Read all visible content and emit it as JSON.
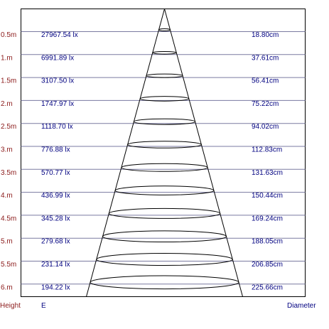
{
  "rows": [
    {
      "height": "0.5m",
      "illuminance": "27967.54 lx",
      "diameter": "18.80cm"
    },
    {
      "height": "1.m",
      "illuminance": "6991.89 lx",
      "diameter": "37.61cm"
    },
    {
      "height": "1.5m",
      "illuminance": "3107.50 lx",
      "diameter": "56.41cm"
    },
    {
      "height": "2.m",
      "illuminance": "1747.97 lx",
      "diameter": "75.22cm"
    },
    {
      "height": "2.5m",
      "illuminance": "1118.70 lx",
      "diameter": "94.02cm"
    },
    {
      "height": "3.m",
      "illuminance": "776.88 lx",
      "diameter": "112.83cm"
    },
    {
      "height": "3.5m",
      "illuminance": "570.77 lx",
      "diameter": "131.63cm"
    },
    {
      "height": "4.m",
      "illuminance": "436.99 lx",
      "diameter": "150.44cm"
    },
    {
      "height": "4.5m",
      "illuminance": "345.28 lx",
      "diameter": "169.24cm"
    },
    {
      "height": "5.m",
      "illuminance": "279.68 lx",
      "diameter": "188.05cm"
    },
    {
      "height": "5.5m",
      "illuminance": "231.14 lx",
      "diameter": "206.85cm"
    },
    {
      "height": "6.m",
      "illuminance": "194.22 lx",
      "diameter": "225.66cm"
    }
  ],
  "footer": {
    "height_label": "Height",
    "e_label": "E",
    "diameter_label": "Diameter"
  },
  "colors": {
    "height_text": "#8b1a1a",
    "value_text": "#000080",
    "row_line": "#7a7aa0"
  }
}
